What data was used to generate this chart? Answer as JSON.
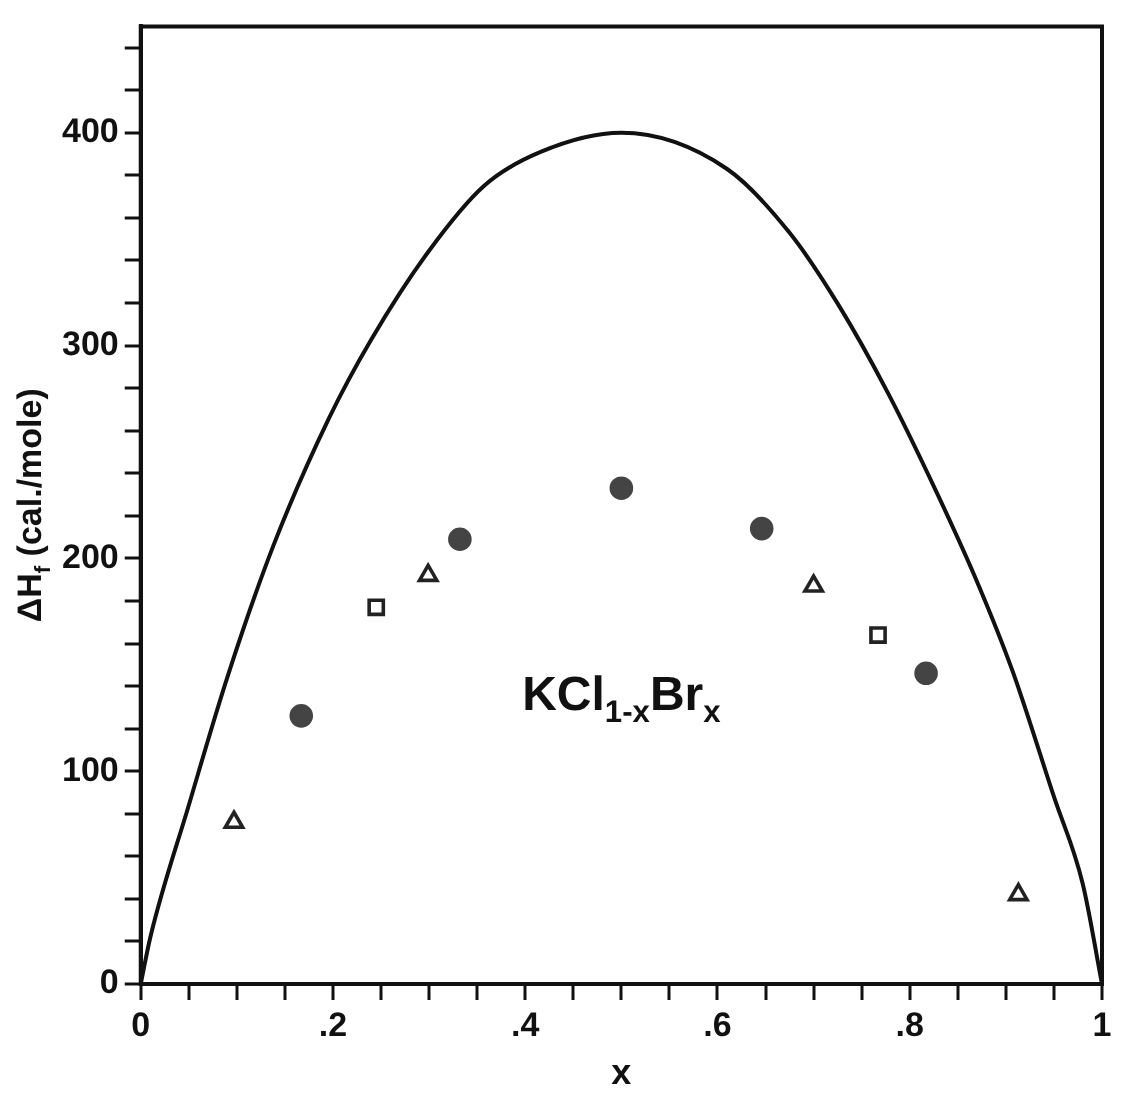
{
  "chart_data": {
    "type": "scatter",
    "xlabel": "x",
    "ylabel": "ΔH$_{f}$ (cal./mole)",
    "annotations": [
      "KCl$_{1-x}$Br$_{x}$"
    ],
    "xlim": [
      0,
      1
    ],
    "ylim": [
      0,
      450
    ],
    "xticks": [
      0,
      {
        "value": 0.05,
        "label": null
      },
      {
        "value": 0.1,
        "label": null
      },
      {
        "value": 0.15,
        "label": null
      },
      {
        "value": 0.2,
        "label": ".2"
      },
      {
        "value": 0.25,
        "label": null
      },
      {
        "value": 0.3,
        "label": null
      },
      {
        "value": 0.35,
        "label": null
      },
      {
        "value": 0.4,
        "label": ".4"
      },
      {
        "value": 0.45,
        "label": null
      },
      {
        "value": 0.5,
        "label": null
      },
      {
        "value": 0.55,
        "label": null
      },
      {
        "value": 0.6,
        "label": ".6"
      },
      {
        "value": 0.65,
        "label": null
      },
      {
        "value": 0.7,
        "label": null
      },
      {
        "value": 0.75,
        "label": null
      },
      {
        "value": 0.8,
        "label": ".8"
      },
      {
        "value": 0.85,
        "label": null
      },
      {
        "value": 0.9,
        "label": null
      },
      {
        "value": 0.95,
        "label": null
      },
      1
    ],
    "yticks": [
      0,
      {
        "value": 20,
        "label": null
      },
      {
        "value": 40,
        "label": null
      },
      {
        "value": 60,
        "label": null
      },
      {
        "value": 80,
        "label": null
      },
      100,
      {
        "value": 120,
        "label": null
      },
      {
        "value": 140,
        "label": null
      },
      {
        "value": 160,
        "label": null
      },
      {
        "value": 180,
        "label": null
      },
      200,
      {
        "value": 220,
        "label": null
      },
      {
        "value": 240,
        "label": null
      },
      {
        "value": 260,
        "label": null
      },
      {
        "value": 280,
        "label": null
      },
      300,
      {
        "value": 320,
        "label": null
      },
      {
        "value": 340,
        "label": null
      },
      {
        "value": 360,
        "label": null
      },
      {
        "value": 380,
        "label": null
      },
      400,
      {
        "value": 420,
        "label": null
      },
      {
        "value": 440,
        "label": null
      }
    ],
    "grid": false,
    "legend": false,
    "series": [
      {
        "type": "line",
        "marker": "none",
        "line_style": "solid",
        "color": "#111111",
        "x": [
          0,
          0.01,
          0.05,
          0.09,
          0.138,
          0.196,
          0.24,
          0.299,
          0.357,
          0.416,
          0.5,
          0.61,
          0.675,
          0.726,
          0.777,
          0.828,
          0.871,
          0.907,
          0.95,
          0.98,
          1
        ],
        "values": [
          0,
          22,
          84,
          144,
          206,
          266,
          303,
          344,
          375,
          391,
          400,
          383,
          353,
          319,
          278,
          231,
          188,
          147,
          88,
          47,
          0
        ]
      },
      {
        "marker": "circle",
        "color": "#444444",
        "x": [
          0.167,
          0.332,
          0.5,
          0.646,
          0.817
        ],
        "values": [
          126,
          209,
          233,
          214,
          146
        ]
      },
      {
        "marker": "triangle",
        "color": "#222222",
        "x": [
          0.097,
          0.299,
          0.7,
          0.913
        ],
        "values": [
          76,
          192,
          187,
          42
        ]
      },
      {
        "marker": "square",
        "color": "#222222",
        "x": [
          0.245,
          0.767
        ],
        "values": [
          177,
          164
        ]
      }
    ]
  }
}
